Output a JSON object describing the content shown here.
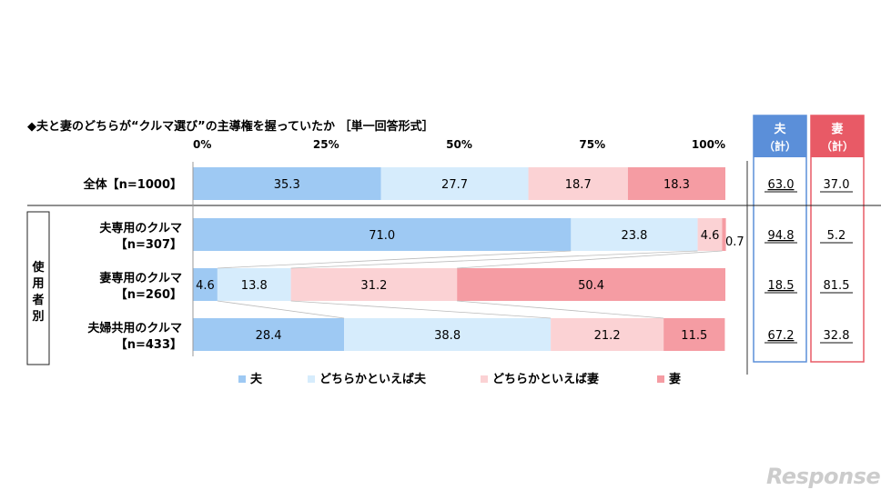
{
  "chart_data": {
    "type": "bar",
    "orientation": "horizontal",
    "stacked": true,
    "title": "◆夫と妻のどちらが“クルマ選び”の主導権を握っていたか ［単一回答形式］",
    "x_ticks": [
      "0%",
      "25%",
      "50%",
      "75%",
      "100%"
    ],
    "xlim": [
      0,
      100
    ],
    "group_label": "使用者別",
    "rows": [
      {
        "label_line1": "全体【n=1000】",
        "label_line2": "",
        "values": [
          35.3,
          27.7,
          18.7,
          18.3
        ],
        "value_labels": [
          "35.3",
          "27.7",
          "18.7",
          "18.3"
        ],
        "husband_total": "63.0",
        "wife_total": "37.0"
      },
      {
        "label_line1": "夫専用のクルマ",
        "label_line2": "【n=307】",
        "values": [
          71.0,
          23.8,
          4.6,
          0.7
        ],
        "value_labels": [
          "71.0",
          "23.8",
          "4.6",
          "0.7"
        ],
        "husband_total": "94.8",
        "wife_total": "5.2"
      },
      {
        "label_line1": "妻専用のクルマ",
        "label_line2": "【n=260】",
        "values": [
          4.6,
          13.8,
          31.2,
          50.4
        ],
        "value_labels": [
          "4.6",
          "13.8",
          "31.2",
          "50.4"
        ],
        "husband_total": "18.5",
        "wife_total": "81.5"
      },
      {
        "label_line1": "夫婦共用のクルマ",
        "label_line2": "【n=433】",
        "values": [
          28.4,
          38.8,
          21.2,
          11.5
        ],
        "value_labels": [
          "28.4",
          "38.8",
          "21.2",
          "11.5"
        ],
        "husband_total": "67.2",
        "wife_total": "32.8"
      }
    ],
    "series": [
      {
        "name": "夫",
        "color": "#9ec9f3"
      },
      {
        "name": "どちらかといえば夫",
        "color": "#d6ecfc"
      },
      {
        "name": "どちらかといえば妻",
        "color": "#fbd2d4"
      },
      {
        "name": "妻",
        "color": "#f59ca3"
      }
    ],
    "husband_total_header": [
      "夫",
      "（計）"
    ],
    "wife_total_header": [
      "妻",
      "（計）"
    ],
    "husband_box_color": "#5b8fd9",
    "wife_box_color": "#e85a66",
    "legend_position": "bottom"
  },
  "watermark": "Response."
}
